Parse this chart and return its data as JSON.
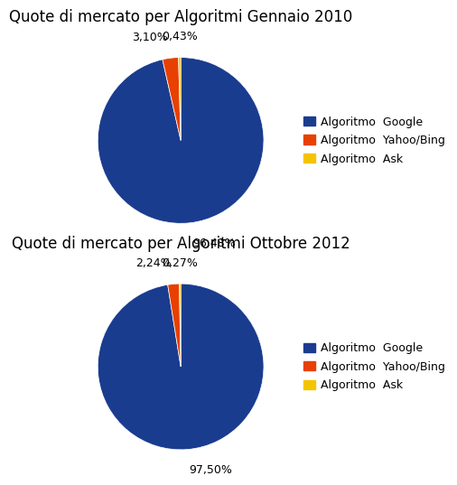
{
  "chart1": {
    "title": "Quote di mercato per Algoritmi Gennaio 2010",
    "values": [
      96.48,
      3.1,
      0.43
    ],
    "labels": [
      "96,48%",
      "3,10%",
      "0,43%"
    ],
    "colors": [
      "#1a3c8f",
      "#e84000",
      "#f5c400"
    ],
    "legend_labels": [
      "Algoritmo  Google",
      "Algoritmo  Yahoo/Bing",
      "Algoritmo  Ask"
    ]
  },
  "chart2": {
    "title": "Quote di mercato per Algoritmi Ottobre 2012",
    "values": [
      97.5,
      2.24,
      0.27
    ],
    "labels": [
      "97,50%",
      "2,24%",
      "0,27%"
    ],
    "colors": [
      "#1a3c8f",
      "#e84000",
      "#f5c400"
    ],
    "legend_labels": [
      "Algoritmo  Google",
      "Algoritmo  Yahoo/Bing",
      "Algoritmo  Ask"
    ]
  },
  "background_color": "#ffffff",
  "title_fontsize": 12,
  "label_fontsize": 9,
  "legend_fontsize": 9
}
